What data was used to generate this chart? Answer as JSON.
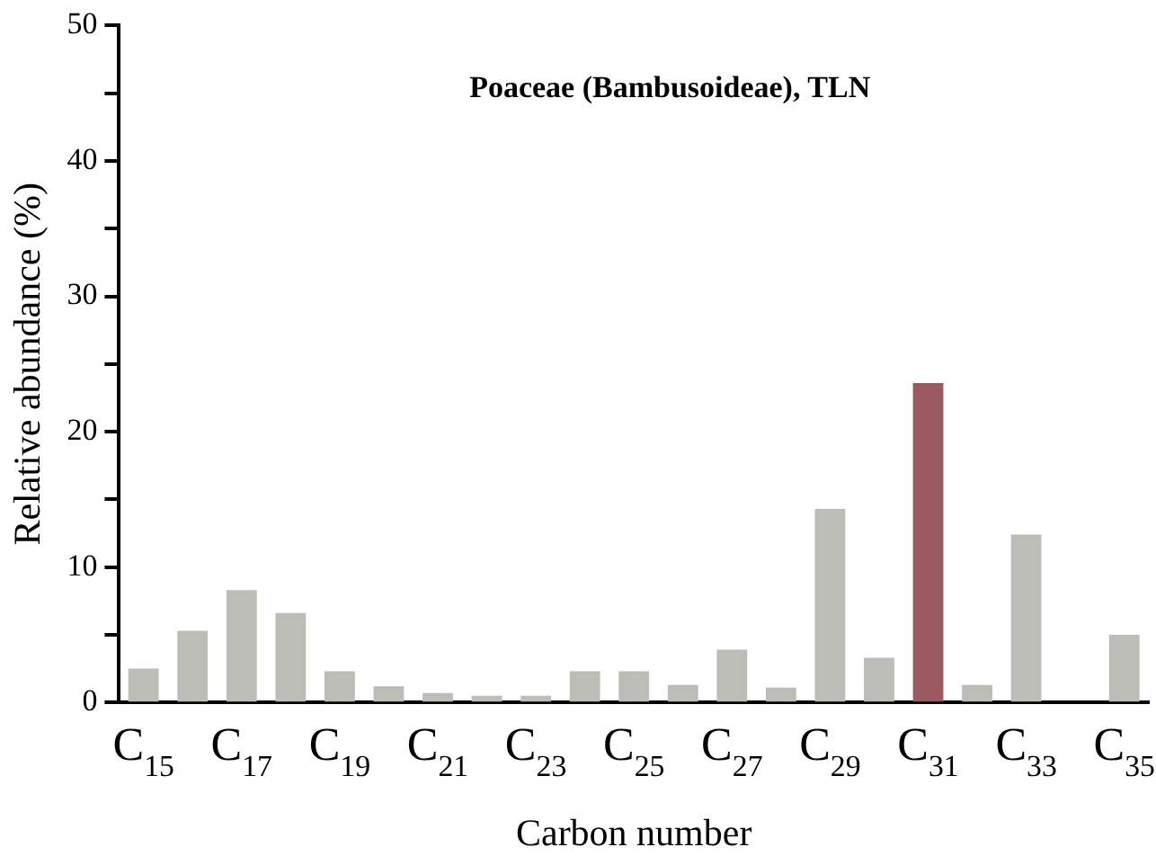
{
  "chart_data": {
    "type": "bar",
    "title": "Poaceae (Bambusoideae), TLN",
    "xlabel": "Carbon number",
    "ylabel": "Relative abundance (%)",
    "categories": [
      "C$_{15}$",
      null,
      "C$_{17}$",
      null,
      "C$_{19}$",
      null,
      "C$_{21}$",
      null,
      "C$_{23}$",
      null,
      "C$_{25}$",
      null,
      "C$_{27}$",
      null,
      "C$_{29}$",
      null,
      "C$_{31}$",
      null,
      "C$_{33}$",
      null,
      "C$_{35}$"
    ],
    "values": [
      2.5,
      5.3,
      8.3,
      6.6,
      2.3,
      1.2,
      0.7,
      0.5,
      0.5,
      2.3,
      2.3,
      1.3,
      3.9,
      1.1,
      14.3,
      3.3,
      23.6,
      1.3,
      12.4,
      0,
      5.0
    ],
    "colors": [
      "#bdbdb8",
      "#bdbdb8",
      "#bdbdb8",
      "#bdbdb8",
      "#bdbdb8",
      "#bdbdb8",
      "#bdbdb8",
      "#bdbdb8",
      "#bdbdb8",
      "#bdbdb8",
      "#bdbdb8",
      "#bdbdb8",
      "#bdbdb8",
      "#bdbdb8",
      "#bdbdb8",
      "#bdbdb8",
      "#9b5a62",
      "#bdbdb8",
      "#bdbdb8",
      "#bdbdb8",
      "#bdbdb8"
    ],
    "ylim": [
      0,
      50
    ],
    "yticks": [
      0,
      {
        "value": 5,
        "label": null
      },
      10,
      {
        "value": 15,
        "label": null
      },
      20,
      {
        "value": 25,
        "label": null
      },
      30,
      {
        "value": 35,
        "label": null
      },
      40,
      {
        "value": 45,
        "label": null
      },
      50
    ],
    "grid": false,
    "legend": false
  }
}
